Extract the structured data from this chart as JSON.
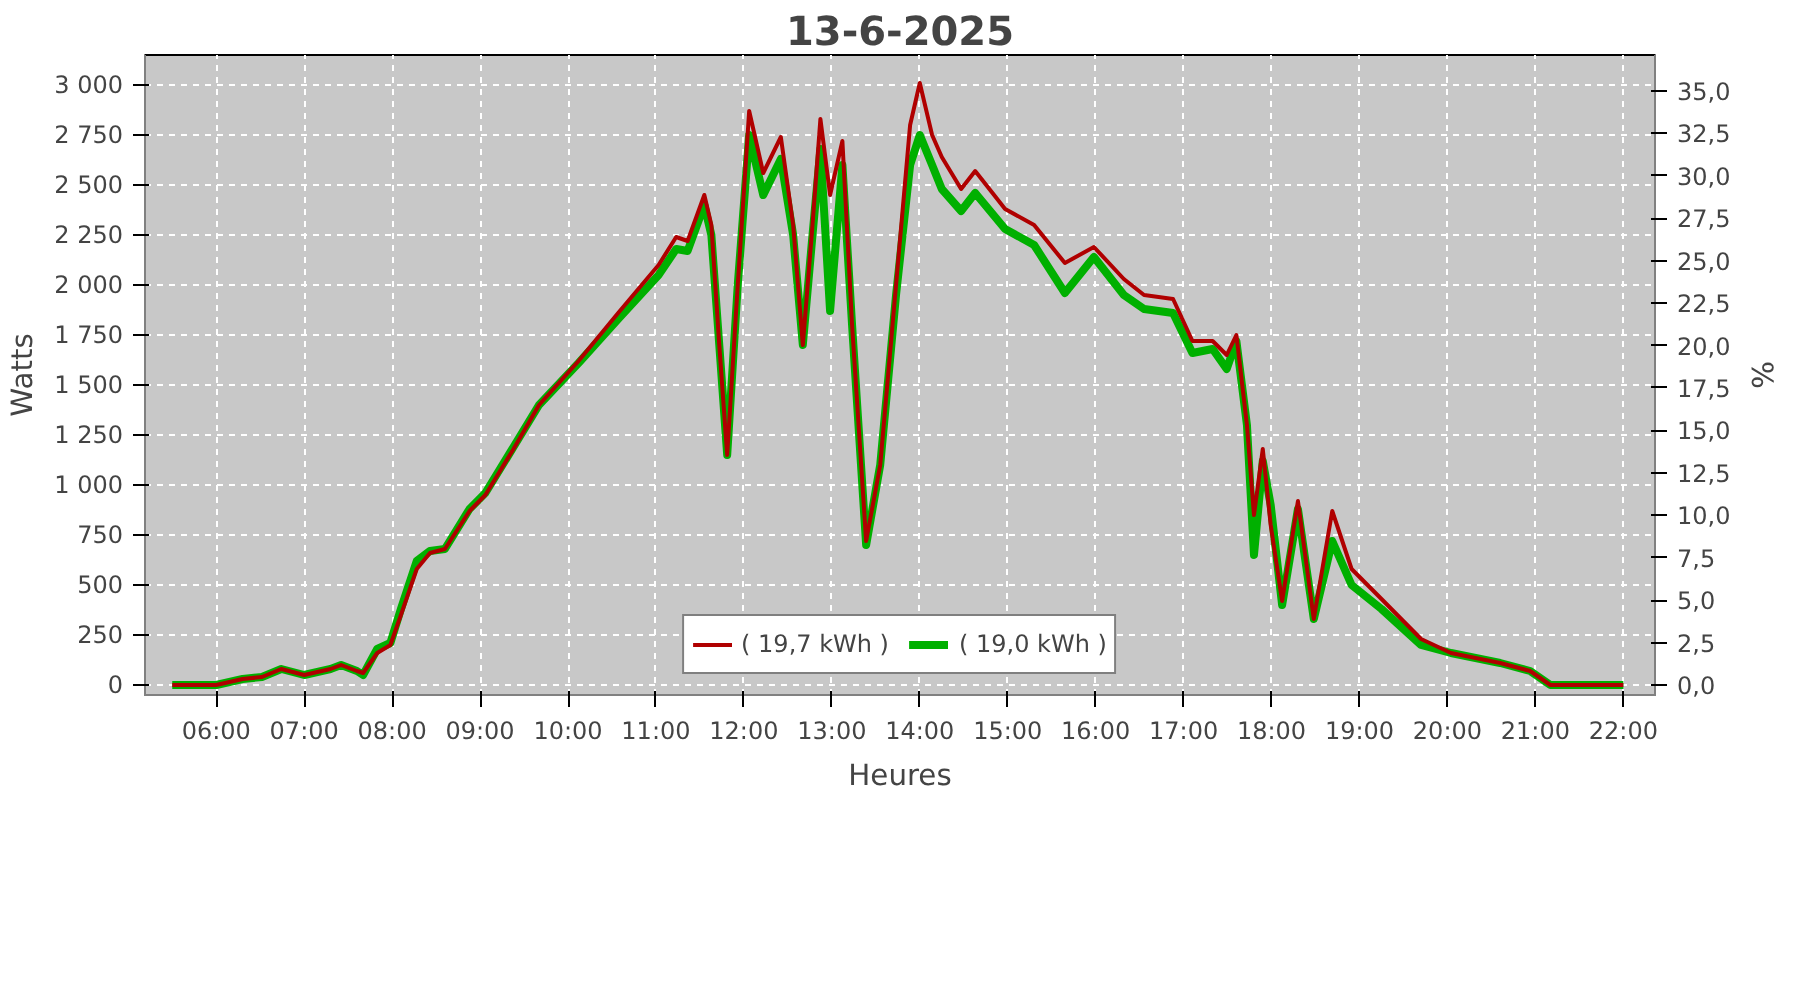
{
  "chart_data": {
    "type": "line",
    "title": "13-6-2025",
    "xlabel": "Heures",
    "ylabel": "Watts",
    "y2label": "%",
    "x": [
      5.5,
      6.0,
      6.3,
      6.52,
      6.74,
      7.0,
      7.3,
      7.42,
      7.6,
      7.67,
      7.83,
      7.98,
      8.1,
      8.28,
      8.43,
      8.6,
      8.88,
      9.06,
      9.38,
      9.67,
      10.12,
      10.57,
      11.03,
      11.23,
      11.36,
      11.55,
      11.63,
      11.72,
      11.81,
      11.93,
      12.06,
      12.22,
      12.42,
      12.56,
      12.67,
      12.78,
      12.87,
      12.98,
      13.12,
      13.23,
      13.39,
      13.55,
      13.73,
      13.89,
      14.0,
      14.14,
      14.25,
      14.47,
      14.63,
      14.97,
      15.3,
      15.65,
      15.98,
      16.32,
      16.55,
      16.88,
      17.1,
      17.33,
      17.49,
      17.6,
      17.72,
      17.8,
      17.9,
      17.99,
      18.12,
      18.3,
      18.48,
      18.69,
      18.91,
      19.25,
      19.7,
      20.04,
      20.6,
      20.94,
      21.17,
      22.0
    ],
    "series": [
      {
        "name": "( 19,7 kWh )",
        "color": "#b00000",
        "values": [
          0,
          0,
          30,
          40,
          80,
          50,
          80,
          100,
          70,
          60,
          160,
          200,
          350,
          580,
          660,
          680,
          870,
          950,
          1180,
          1400,
          1620,
          1860,
          2100,
          2240,
          2220,
          2450,
          2300,
          1700,
          1150,
          2000,
          2870,
          2560,
          2740,
          2300,
          1700,
          2300,
          2830,
          2450,
          2720,
          1800,
          720,
          1100,
          2000,
          2800,
          3010,
          2750,
          2640,
          2480,
          2570,
          2380,
          2300,
          2110,
          2190,
          2030,
          1950,
          1930,
          1720,
          1720,
          1650,
          1750,
          1300,
          850,
          1180,
          800,
          420,
          920,
          330,
          870,
          580,
          430,
          230,
          160,
          110,
          70,
          0,
          0
        ]
      },
      {
        "name": "( 19,0 kWh )",
        "color": "#00b000",
        "values": [
          0,
          0,
          30,
          40,
          80,
          50,
          80,
          100,
          70,
          50,
          180,
          210,
          380,
          620,
          670,
          680,
          880,
          960,
          1190,
          1400,
          1610,
          1830,
          2050,
          2180,
          2170,
          2400,
          2250,
          1700,
          1150,
          2000,
          2750,
          2450,
          2630,
          2250,
          1700,
          2250,
          2680,
          1870,
          2600,
          1800,
          700,
          1100,
          1950,
          2600,
          2750,
          2600,
          2480,
          2370,
          2460,
          2280,
          2200,
          1960,
          2140,
          1950,
          1880,
          1860,
          1660,
          1680,
          1580,
          1720,
          1300,
          650,
          1120,
          900,
          400,
          880,
          330,
          720,
          500,
          380,
          200,
          160,
          110,
          70,
          0,
          0
        ]
      }
    ],
    "xlim": [
      5.19,
      22.36
    ],
    "ylim": [
      -50,
      3150
    ],
    "y2lim": [
      -0.57,
      37.1
    ],
    "xticks": [
      {
        "value": 6,
        "label": "06:00"
      },
      {
        "value": 7,
        "label": "07:00"
      },
      {
        "value": 8,
        "label": "08:00"
      },
      {
        "value": 9,
        "label": "09:00"
      },
      {
        "value": 10,
        "label": "10:00"
      },
      {
        "value": 11,
        "label": "11:00"
      },
      {
        "value": 12,
        "label": "12:00"
      },
      {
        "value": 13,
        "label": "13:00"
      },
      {
        "value": 14,
        "label": "14:00"
      },
      {
        "value": 15,
        "label": "15:00"
      },
      {
        "value": 16,
        "label": "16:00"
      },
      {
        "value": 17,
        "label": "17:00"
      },
      {
        "value": 18,
        "label": "18:00"
      },
      {
        "value": 19,
        "label": "19:00"
      },
      {
        "value": 20,
        "label": "20:00"
      },
      {
        "value": 21,
        "label": "21:00"
      },
      {
        "value": 22,
        "label": "22:00"
      }
    ],
    "yticks": [
      0,
      250,
      500,
      750,
      {
        "value": 1000,
        "label": "1 000"
      },
      {
        "value": 1250,
        "label": "1 250"
      },
      {
        "value": 1500,
        "label": "1 500"
      },
      {
        "value": 1750,
        "label": "1 750"
      },
      {
        "value": 2000,
        "label": "2 000"
      },
      {
        "value": 2250,
        "label": "2 250"
      },
      {
        "value": 2500,
        "label": "2 500"
      },
      {
        "value": 2750,
        "label": "2 750"
      },
      {
        "value": 3000,
        "label": "3 000"
      }
    ],
    "y2ticks": [
      {
        "value": 0,
        "label": "0,0"
      },
      {
        "value": 2.5,
        "label": "2,5"
      },
      {
        "value": 5,
        "label": "5,0"
      },
      {
        "value": 7.5,
        "label": "7,5"
      },
      {
        "value": 10,
        "label": "10,0"
      },
      {
        "value": 12.5,
        "label": "12,5"
      },
      {
        "value": 15,
        "label": "15,0"
      },
      {
        "value": 17.5,
        "label": "17,5"
      },
      {
        "value": 20,
        "label": "20,0"
      },
      {
        "value": 22.5,
        "label": "22,5"
      },
      {
        "value": 25,
        "label": "25,0"
      },
      {
        "value": 27.5,
        "label": "27,5"
      },
      {
        "value": 30,
        "label": "30,0"
      },
      {
        "value": 32.5,
        "label": "32,5"
      },
      {
        "value": 35,
        "label": "35,0"
      }
    ],
    "grid": true,
    "legend": "bottom",
    "line_style": "solid"
  }
}
